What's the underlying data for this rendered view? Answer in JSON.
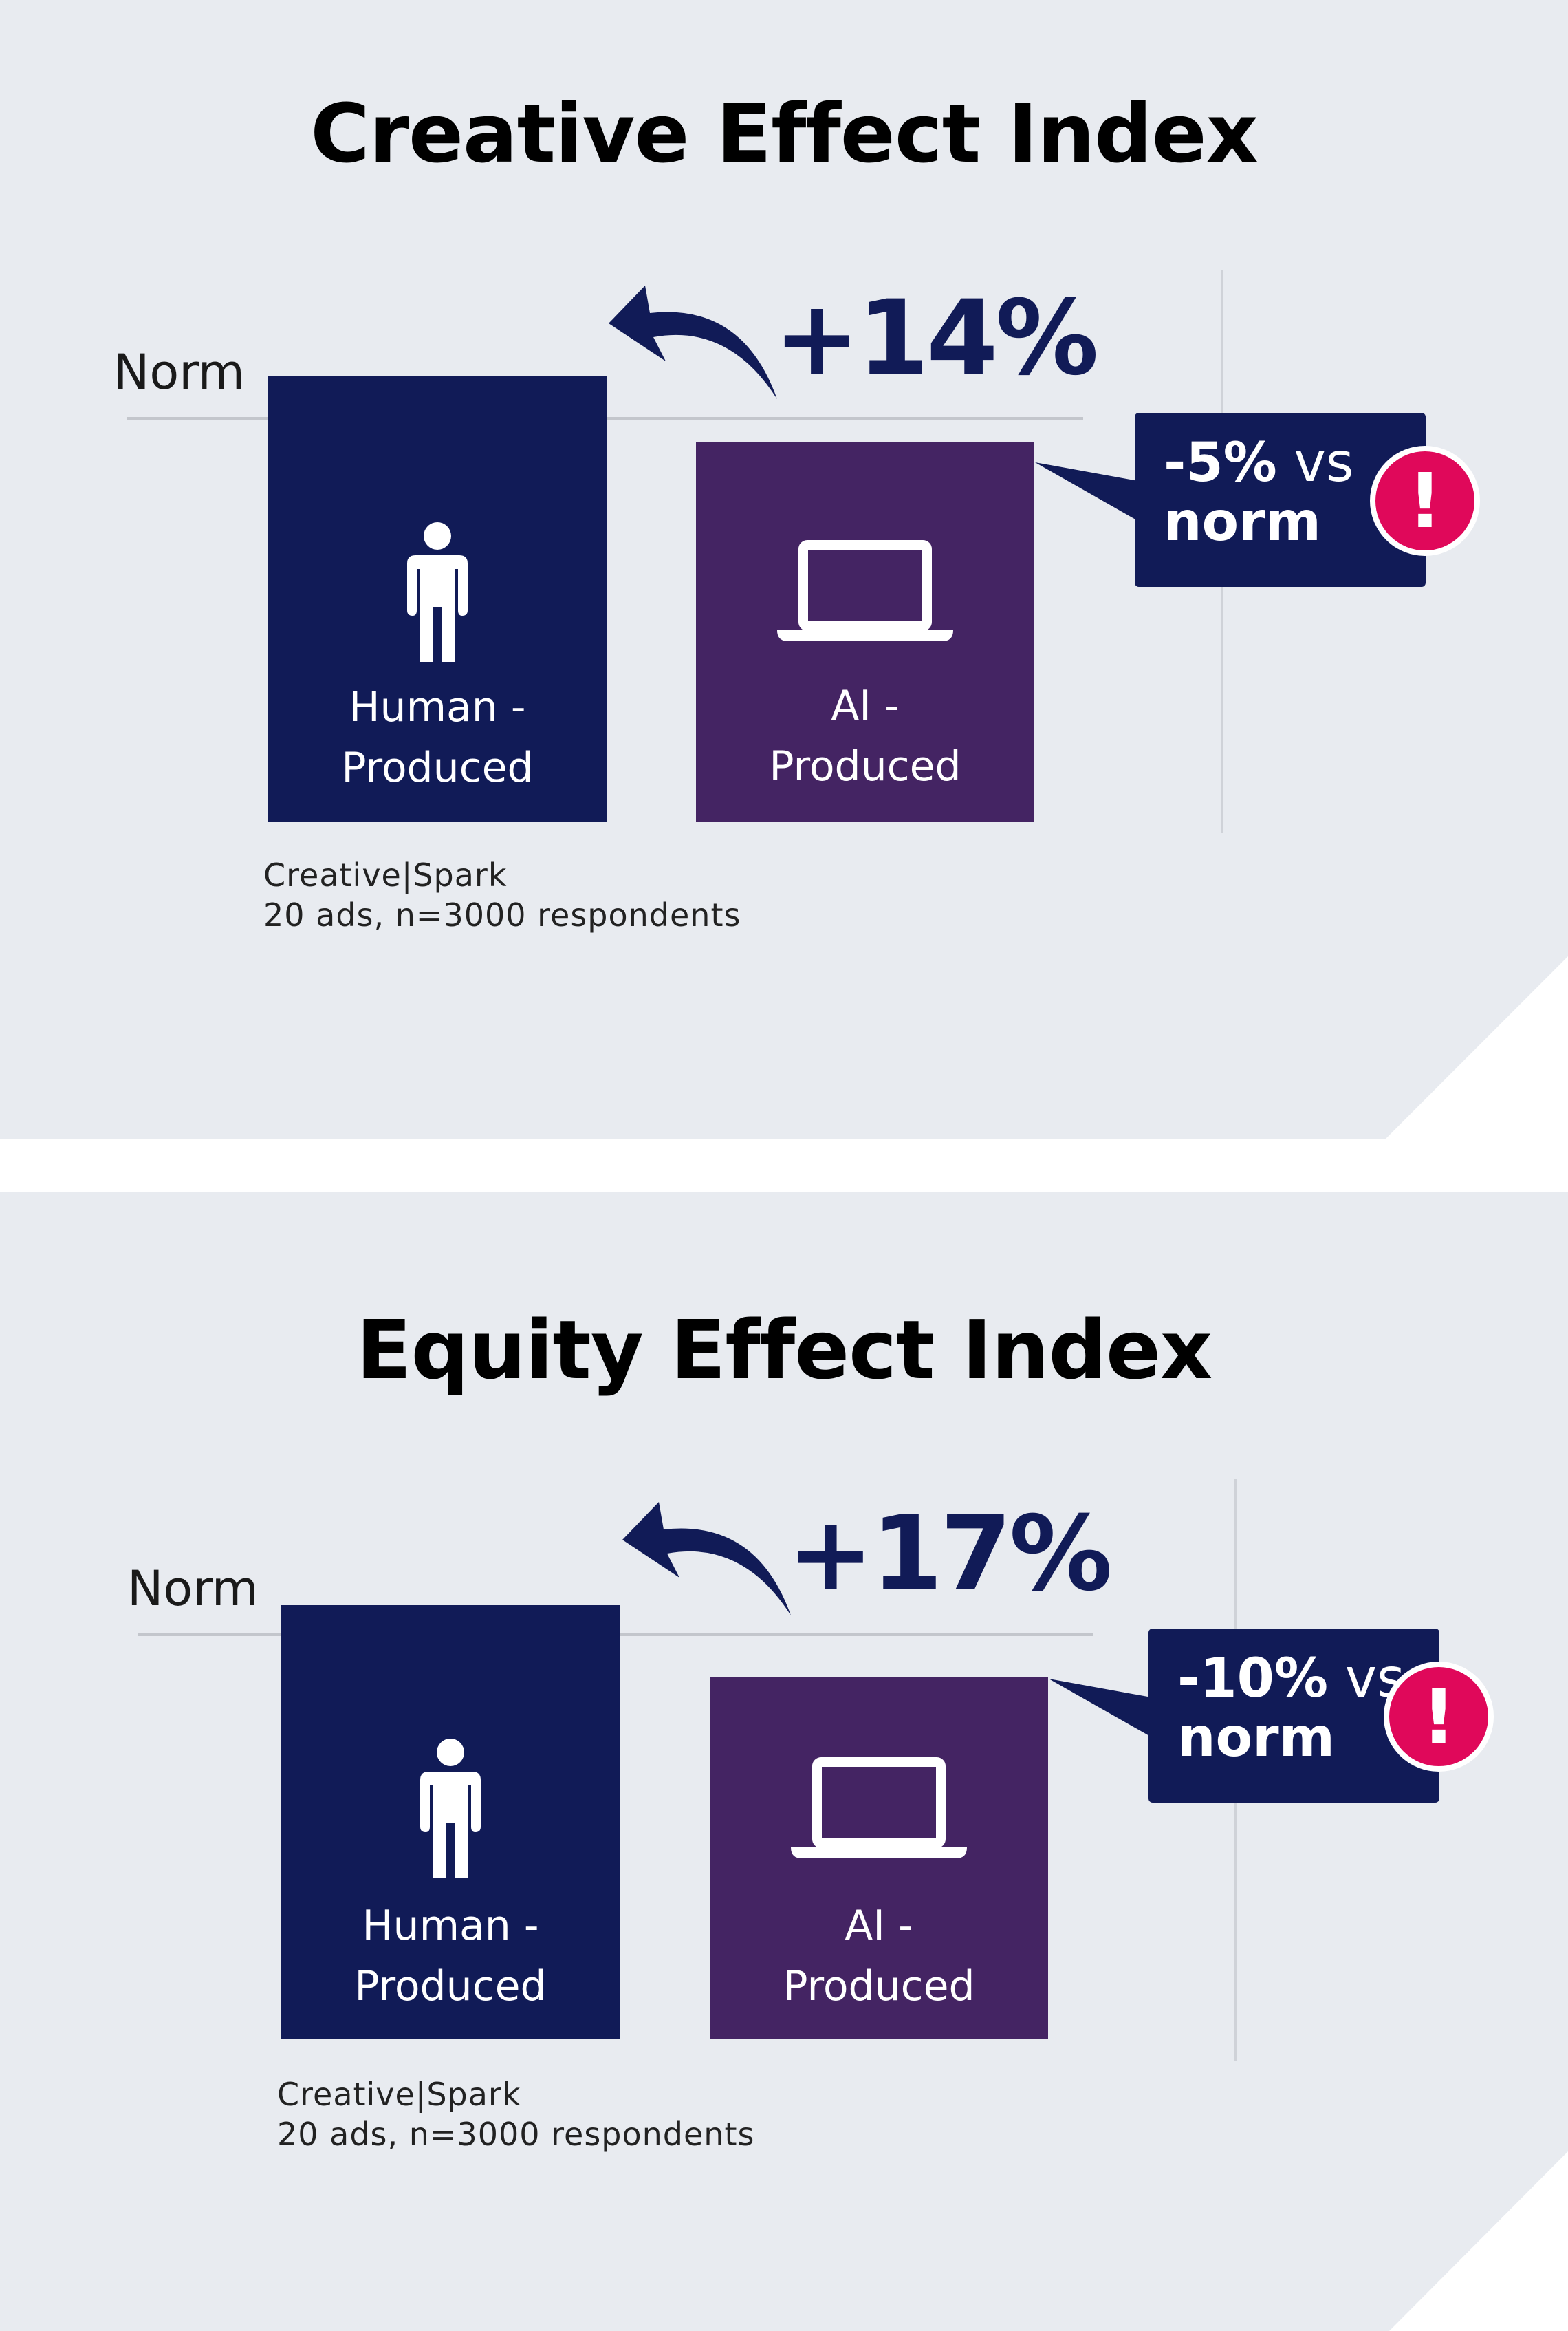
{
  "chart_data": [
    {
      "type": "bar",
      "title": "Creative Effect Index",
      "norm_label": "Norm",
      "categories": [
        "Human - Produced",
        "AI - Produced"
      ],
      "category_lines": [
        [
          "Human -",
          "Produced"
        ],
        [
          "AI -",
          "Produced"
        ]
      ],
      "values_vs_norm_pct": [
        9,
        -5
      ],
      "change_label": "+14%",
      "callout": {
        "value": "-5%",
        "vs": " vs",
        "norm": "norm"
      },
      "alert_symbol": "!",
      "source": [
        "Creative|Spark",
        "20 ads, n=3000 respondents"
      ],
      "colors": {
        "human": "#111b57",
        "ai": "#442463",
        "alert": "#e0085a"
      }
    },
    {
      "type": "bar",
      "title": "Equity Effect Index",
      "norm_label": "Norm",
      "categories": [
        "Human - Produced",
        "AI - Produced"
      ],
      "category_lines": [
        [
          "Human -",
          "Produced"
        ],
        [
          "AI -",
          "Produced"
        ]
      ],
      "values_vs_norm_pct": [
        7,
        -10
      ],
      "change_label": "+17%",
      "callout": {
        "value": "-10%",
        "vs": " vs",
        "norm": "norm"
      },
      "alert_symbol": "!",
      "source": [
        "Creative|Spark",
        "20 ads, n=3000 respondents"
      ],
      "colors": {
        "human": "#111b57",
        "ai": "#442463",
        "alert": "#e0085a"
      }
    }
  ]
}
